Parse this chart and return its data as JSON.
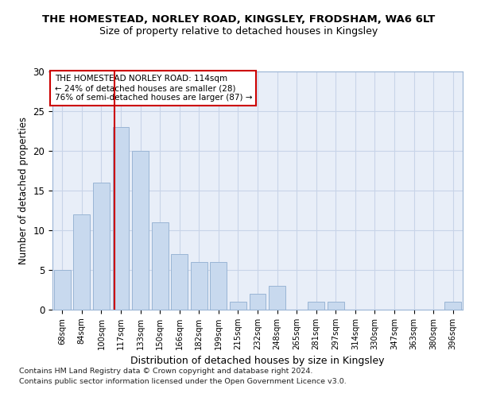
{
  "title1": "THE HOMESTEAD, NORLEY ROAD, KINGSLEY, FRODSHAM, WA6 6LT",
  "title2": "Size of property relative to detached houses in Kingsley",
  "xlabel": "Distribution of detached houses by size in Kingsley",
  "ylabel": "Number of detached properties",
  "categories": [
    "68sqm",
    "84sqm",
    "100sqm",
    "117sqm",
    "133sqm",
    "150sqm",
    "166sqm",
    "182sqm",
    "199sqm",
    "215sqm",
    "232sqm",
    "248sqm",
    "265sqm",
    "281sqm",
    "297sqm",
    "314sqm",
    "330sqm",
    "347sqm",
    "363sqm",
    "380sqm",
    "396sqm"
  ],
  "values": [
    5,
    12,
    16,
    23,
    20,
    11,
    7,
    6,
    6,
    1,
    2,
    3,
    0,
    1,
    1,
    0,
    0,
    0,
    0,
    0,
    1
  ],
  "bar_color": "#c8d9ee",
  "bar_edge_color": "#9ab5d5",
  "property_line_x": 2.68,
  "annotation_line1": "THE HOMESTEAD NORLEY ROAD: 114sqm",
  "annotation_line2": "← 24% of detached houses are smaller (28)",
  "annotation_line3": "76% of semi-detached houses are larger (87) →",
  "annotation_box_color": "#ffffff",
  "annotation_box_edge": "#cc0000",
  "vline_color": "#cc0000",
  "ylim": [
    0,
    30
  ],
  "yticks": [
    0,
    5,
    10,
    15,
    20,
    25,
    30
  ],
  "grid_color": "#c8d4e8",
  "background_color": "#e8eef8",
  "footer1": "Contains HM Land Registry data © Crown copyright and database right 2024.",
  "footer2": "Contains public sector information licensed under the Open Government Licence v3.0."
}
